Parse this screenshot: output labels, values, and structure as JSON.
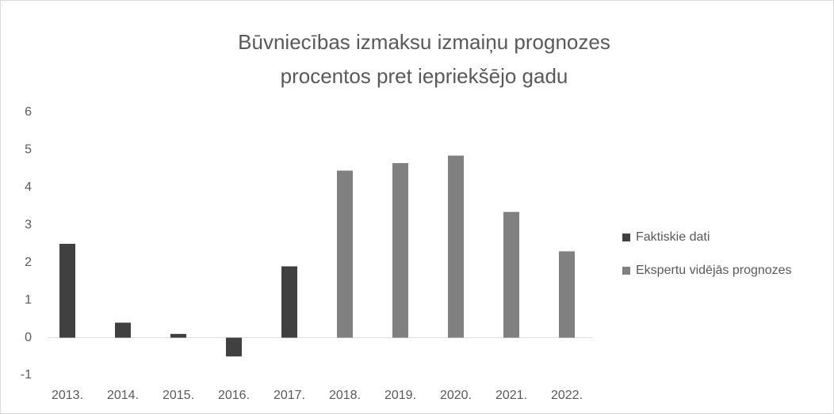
{
  "chart_data": {
    "type": "bar",
    "title": [
      "Būvniecības izmaksu izmaiņu prognozes",
      "procentos pret iepriekšējo gadu"
    ],
    "categories": [
      "2013.",
      "2014.",
      "2015.",
      "2016.",
      "2017.",
      "2018.",
      "2019.",
      "2020.",
      "2021.",
      "2022."
    ],
    "series": [
      {
        "name": "Faktiskie dati",
        "color": "#404040",
        "values": [
          2.5,
          0.4,
          0.1,
          -0.5,
          1.9,
          null,
          null,
          null,
          null,
          null
        ]
      },
      {
        "name": "Ekspertu vidējās prognozes",
        "color": "#808080",
        "values": [
          null,
          null,
          null,
          null,
          null,
          4.45,
          4.65,
          4.85,
          3.35,
          2.3
        ]
      }
    ],
    "ylim": [
      -1,
      6
    ],
    "yticks": [
      -1,
      0,
      1,
      2,
      3,
      4,
      5,
      6
    ],
    "grid": false,
    "legend": "right"
  }
}
